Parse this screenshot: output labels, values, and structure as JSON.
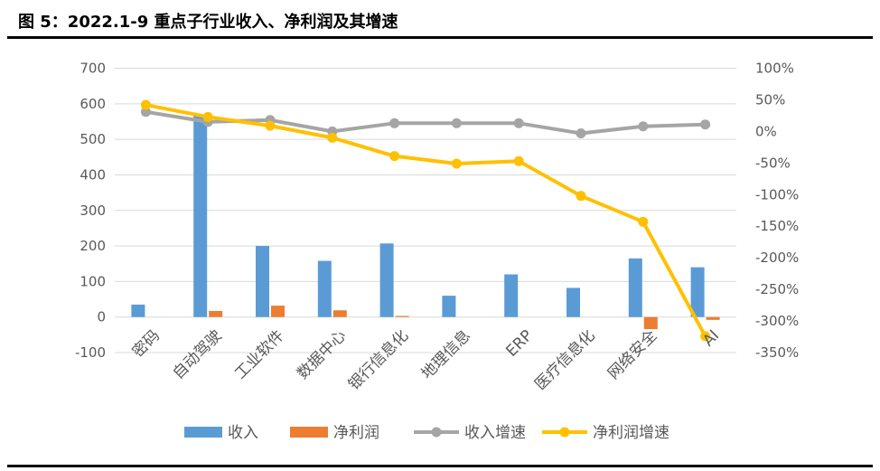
{
  "figure": {
    "title": "图 5：2022.1-9 重点子行业收入、净利润及其增速"
  },
  "colors": {
    "revenue": "#5B9BD5",
    "net_profit": "#ED7D31",
    "revenue_growth": "#A5A5A5",
    "net_profit_growth": "#FFC000",
    "axis_text": "#595959",
    "gridline": "#D9D9D9"
  },
  "chart_data": {
    "type": "bar",
    "title": "",
    "categories": [
      "密码",
      "自动驾驶",
      "工业软件",
      "数据中心",
      "银行信息化",
      "地理信息",
      "ERP",
      "医疗信息化",
      "网络安全",
      "AI"
    ],
    "series": [
      {
        "name": "收入",
        "type": "bar",
        "axis": "left",
        "values": [
          35,
          570,
          200,
          158,
          207,
          60,
          120,
          82,
          165,
          140
        ]
      },
      {
        "name": "净利润",
        "type": "bar",
        "axis": "left",
        "values": [
          0,
          17,
          32,
          19,
          3,
          0,
          0,
          0,
          -34,
          -8
        ]
      },
      {
        "name": "收入增速",
        "type": "line",
        "axis": "right",
        "values": [
          31,
          15,
          18,
          0,
          13,
          13,
          13,
          -3,
          8,
          11
        ]
      },
      {
        "name": "净利润增速",
        "type": "line",
        "axis": "right",
        "values": [
          42,
          23,
          9,
          -10,
          -39,
          -51,
          -47,
          -102,
          -143,
          -324
        ]
      }
    ],
    "y_left": {
      "min": -100,
      "max": 700,
      "step": 100,
      "ticks": [
        "700",
        "600",
        "500",
        "400",
        "300",
        "200",
        "100",
        "0",
        "-100"
      ]
    },
    "y_right": {
      "min": -350,
      "max": 100,
      "step": 50,
      "ticks": [
        "100%",
        "50%",
        "0%",
        "-50%",
        "-100%",
        "-150%",
        "-200%",
        "-250%",
        "-300%",
        "-350%"
      ]
    },
    "grid": true,
    "legend_position": "bottom"
  }
}
